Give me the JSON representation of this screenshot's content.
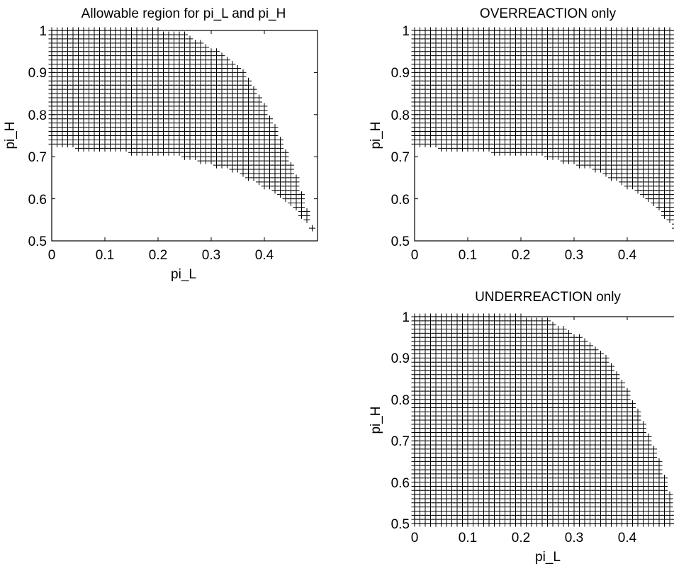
{
  "figure": {
    "background": "#ffffff",
    "foreground": "#000000",
    "marker": "+"
  },
  "chart_data": [
    {
      "id": "allowable",
      "type": "scatter",
      "title": "Allowable region for pi_L and pi_H",
      "xlabel": "pi_L",
      "ylabel": "pi_H",
      "xlim": [
        0,
        0.5
      ],
      "ylim": [
        0.5,
        1
      ],
      "xticks": [
        "0",
        "0.1",
        "0.2",
        "0.3",
        "0.4"
      ],
      "yticks": [
        "0.5",
        "0.6",
        "0.7",
        "0.8",
        "0.9",
        "1"
      ],
      "grid": false,
      "legend": "none",
      "marker": "+",
      "grid_step": 0.01,
      "lower_boundary": {
        "x": [
          0,
          0.05,
          0.1,
          0.15,
          0.2,
          0.25,
          0.28,
          0.31,
          0.34,
          0.37,
          0.4,
          0.43,
          0.45,
          0.47,
          0.49
        ],
        "y": [
          0.73,
          0.72,
          0.72,
          0.71,
          0.71,
          0.7,
          0.69,
          0.68,
          0.67,
          0.65,
          0.63,
          0.61,
          0.59,
          0.56,
          0.53
        ]
      },
      "upper_boundary": {
        "x": [
          0,
          0.1,
          0.2,
          0.25,
          0.28,
          0.31,
          0.34,
          0.36,
          0.38,
          0.4,
          0.42,
          0.44,
          0.46,
          0.47,
          0.48,
          0.49
        ],
        "y": [
          1.0,
          1.0,
          1.0,
          0.99,
          0.97,
          0.95,
          0.92,
          0.9,
          0.86,
          0.82,
          0.77,
          0.71,
          0.65,
          0.61,
          0.57,
          0.53
        ]
      }
    },
    {
      "id": "overreaction",
      "type": "scatter",
      "title": "OVERREACTION only",
      "xlabel": "",
      "ylabel": "pi_H",
      "xlim": [
        0,
        0.5
      ],
      "ylim": [
        0.5,
        1
      ],
      "xticks": [
        "0",
        "0.1",
        "0.2",
        "0.3",
        "0.4"
      ],
      "yticks": [
        "0.5",
        "0.6",
        "0.7",
        "0.8",
        "0.9",
        "1"
      ],
      "grid": false,
      "legend": "none",
      "marker": "+",
      "grid_step": 0.01,
      "lower_boundary": {
        "x": [
          0,
          0.05,
          0.1,
          0.15,
          0.2,
          0.25,
          0.28,
          0.31,
          0.34,
          0.37,
          0.4,
          0.43,
          0.45,
          0.47,
          0.49
        ],
        "y": [
          0.73,
          0.72,
          0.72,
          0.71,
          0.71,
          0.7,
          0.69,
          0.68,
          0.67,
          0.65,
          0.63,
          0.61,
          0.59,
          0.56,
          0.53
        ]
      },
      "upper_boundary": {
        "x": [
          0,
          0.49
        ],
        "y": [
          1.0,
          1.0
        ]
      }
    },
    {
      "id": "underreaction",
      "type": "scatter",
      "title": "UNDERREACTION only",
      "xlabel": "pi_L",
      "ylabel": "pi_H",
      "xlim": [
        0,
        0.5
      ],
      "ylim": [
        0.5,
        1
      ],
      "xticks": [
        "0",
        "0.1",
        "0.2",
        "0.3",
        "0.4"
      ],
      "yticks": [
        "0.5",
        "0.6",
        "0.7",
        "0.8",
        "0.9",
        "1"
      ],
      "grid": false,
      "legend": "none",
      "marker": "+",
      "grid_step": 0.01,
      "lower_boundary": {
        "x": [
          0,
          0.49
        ],
        "y": [
          0.5,
          0.5
        ]
      },
      "upper_boundary": {
        "x": [
          0,
          0.1,
          0.2,
          0.25,
          0.28,
          0.31,
          0.34,
          0.36,
          0.38,
          0.4,
          0.42,
          0.44,
          0.46,
          0.47,
          0.48,
          0.49
        ],
        "y": [
          1.0,
          1.0,
          1.0,
          0.99,
          0.97,
          0.95,
          0.92,
          0.9,
          0.86,
          0.82,
          0.77,
          0.71,
          0.65,
          0.61,
          0.57,
          0.53
        ]
      }
    }
  ]
}
